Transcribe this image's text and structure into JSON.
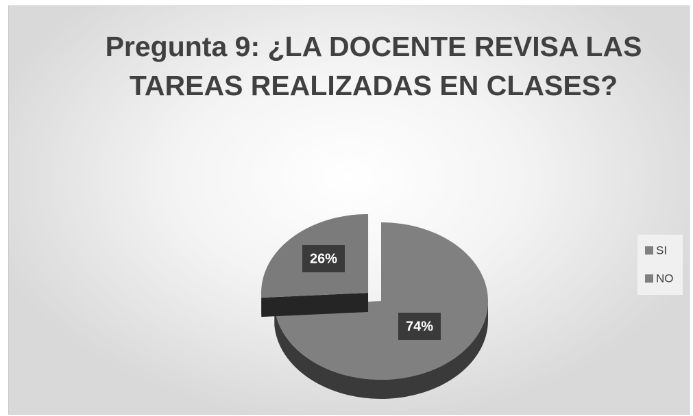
{
  "chart_data": {
    "type": "pie",
    "title": "Pregunta 9: ¿LA DOCENTE REVISA LAS TAREAS REALIZADAS EN CLASES?",
    "categories": [
      "SI",
      "NO"
    ],
    "values": [
      74,
      26
    ],
    "value_labels": [
      "74%",
      "26%"
    ],
    "colors": [
      "#808080",
      "#7b7b7b"
    ],
    "legend": "right"
  }
}
